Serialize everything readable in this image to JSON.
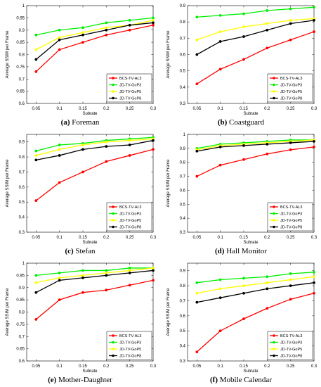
{
  "chart_data": [
    {
      "type": "line",
      "caption_letter": "(a)",
      "caption_title": "Foreman",
      "xlabel": "Subrate",
      "ylabel": "Average SSIM per Frame",
      "xlim": [
        0.03,
        0.3
      ],
      "ylim": [
        0.6,
        1.0
      ],
      "x_ticks": [
        "0.05",
        "0.1",
        "0.15",
        "0.2",
        "0.25",
        "0.3"
      ],
      "y_ticks": [
        "0.6",
        "0.65",
        "0.7",
        "0.75",
        "0.8",
        "0.85",
        "0.9",
        "0.95",
        "1"
      ],
      "legend_position": "bottom-right",
      "x": [
        0.05,
        0.1,
        0.15,
        0.2,
        0.25,
        0.3
      ],
      "series": [
        {
          "name": "BCS-TV-AL3",
          "color": "#ff0000",
          "values": [
            0.73,
            0.82,
            0.85,
            0.88,
            0.9,
            0.92
          ]
        },
        {
          "name": "JD-TV-GoP3",
          "color": "#00ee00",
          "values": [
            0.88,
            0.9,
            0.91,
            0.93,
            0.94,
            0.95
          ]
        },
        {
          "name": "JD-TV-GoP5",
          "color": "#ffff00",
          "values": [
            0.82,
            0.87,
            0.89,
            0.91,
            0.92,
            0.94
          ]
        },
        {
          "name": "JD-TV-GoP8",
          "color": "#000000",
          "values": [
            0.78,
            0.86,
            0.88,
            0.9,
            0.92,
            0.93
          ]
        }
      ]
    },
    {
      "type": "line",
      "caption_letter": "(b)",
      "caption_title": "Coastguard",
      "xlabel": "Subrate",
      "ylabel": "Average SSIM per Frame",
      "xlim": [
        0.03,
        0.3
      ],
      "ylim": [
        0.3,
        0.9
      ],
      "x_ticks": [
        "0.05",
        "0.1",
        "0.15",
        "0.2",
        "0.25",
        "0.3"
      ],
      "y_ticks": [
        "0.3",
        "0.4",
        "0.5",
        "0.6",
        "0.7",
        "0.8",
        "0.9"
      ],
      "legend_position": "bottom-right",
      "x": [
        0.05,
        0.1,
        0.15,
        0.2,
        0.25,
        0.3
      ],
      "series": [
        {
          "name": "BCS-TV-AL3",
          "color": "#ff0000",
          "values": [
            0.42,
            0.51,
            0.57,
            0.64,
            0.69,
            0.74
          ]
        },
        {
          "name": "JD-TV-GoP3",
          "color": "#00ee00",
          "values": [
            0.83,
            0.84,
            0.85,
            0.87,
            0.88,
            0.89
          ]
        },
        {
          "name": "JD-TV-GoP5",
          "color": "#ffff00",
          "values": [
            0.69,
            0.74,
            0.77,
            0.79,
            0.81,
            0.82
          ]
        },
        {
          "name": "JD-TV-GoP8",
          "color": "#000000",
          "values": [
            0.6,
            0.68,
            0.71,
            0.75,
            0.79,
            0.81
          ]
        }
      ]
    },
    {
      "type": "line",
      "caption_letter": "(c)",
      "caption_title": "Stefan",
      "xlabel": "Subrate",
      "ylabel": "Average SSIM per Frame",
      "xlim": [
        0.03,
        0.3
      ],
      "ylim": [
        0.3,
        0.95
      ],
      "x_ticks": [
        "0.05",
        "0.1",
        "0.15",
        "0.2",
        "0.25",
        "0.3"
      ],
      "y_ticks": [
        "0.3",
        "0.4",
        "0.5",
        "0.6",
        "0.7",
        "0.8",
        "0.9"
      ],
      "legend_position": "bottom-right",
      "x": [
        0.05,
        0.1,
        0.15,
        0.2,
        0.25,
        0.3
      ],
      "series": [
        {
          "name": "BCS-TV-AL3",
          "color": "#ff0000",
          "values": [
            0.51,
            0.63,
            0.7,
            0.77,
            0.81,
            0.85
          ]
        },
        {
          "name": "JD-TV-GoP3",
          "color": "#00ee00",
          "values": [
            0.84,
            0.88,
            0.89,
            0.91,
            0.92,
            0.93
          ]
        },
        {
          "name": "JD-TV-GoP5",
          "color": "#ffff00",
          "values": [
            0.81,
            0.85,
            0.88,
            0.9,
            0.91,
            0.92
          ]
        },
        {
          "name": "JD-TV-GoP8",
          "color": "#000000",
          "values": [
            0.78,
            0.81,
            0.85,
            0.87,
            0.88,
            0.91
          ]
        }
      ]
    },
    {
      "type": "line",
      "caption_letter": "(d)",
      "caption_title": "Hall Monitor",
      "xlabel": "Subrate",
      "ylabel": "Average SSIM per Frame",
      "xlim": [
        0.03,
        0.3
      ],
      "ylim": [
        0.3,
        1.0
      ],
      "x_ticks": [
        "0.05",
        "0.1",
        "0.15",
        "0.2",
        "0.25",
        "0.3"
      ],
      "y_ticks": [
        "0.3",
        "0.4",
        "0.5",
        "0.6",
        "0.7",
        "0.8",
        "0.9",
        "1"
      ],
      "legend_position": "bottom-right",
      "x": [
        0.05,
        0.1,
        0.15,
        0.2,
        0.25,
        0.3
      ],
      "series": [
        {
          "name": "BCS-TV-AL3",
          "color": "#ff0000",
          "values": [
            0.7,
            0.78,
            0.82,
            0.86,
            0.89,
            0.91
          ]
        },
        {
          "name": "JD-TV-GoP3",
          "color": "#00ee00",
          "values": [
            0.9,
            0.93,
            0.94,
            0.95,
            0.96,
            0.96
          ]
        },
        {
          "name": "JD-TV-GoP5",
          "color": "#ffff00",
          "values": [
            0.89,
            0.92,
            0.93,
            0.94,
            0.95,
            0.96
          ]
        },
        {
          "name": "JD-TV-GoP8",
          "color": "#000000",
          "values": [
            0.88,
            0.91,
            0.92,
            0.93,
            0.94,
            0.95
          ]
        }
      ]
    },
    {
      "type": "line",
      "caption_letter": "(e)",
      "caption_title": "Mother-Daughter",
      "xlabel": "Subrate",
      "ylabel": "Average SSIM per Frame",
      "xlim": [
        0.03,
        0.3
      ],
      "ylim": [
        0.6,
        1.0
      ],
      "x_ticks": [
        "0.05",
        "0.1",
        "0.15",
        "0.2",
        "0.25",
        "0.3"
      ],
      "y_ticks": [
        "0.6",
        "0.65",
        "0.7",
        "0.75",
        "0.8",
        "0.85",
        "0.9",
        "0.95",
        "1"
      ],
      "legend_position": "bottom-right",
      "x": [
        0.05,
        0.1,
        0.15,
        0.2,
        0.25,
        0.3
      ],
      "series": [
        {
          "name": "BCS-TV-AL3",
          "color": "#ff0000",
          "values": [
            0.77,
            0.85,
            0.88,
            0.89,
            0.91,
            0.93
          ]
        },
        {
          "name": "JD-TV-GoP3",
          "color": "#00ee00",
          "values": [
            0.95,
            0.96,
            0.97,
            0.97,
            0.98,
            0.98
          ]
        },
        {
          "name": "JD-TV-GoP5",
          "color": "#ffff00",
          "values": [
            0.92,
            0.94,
            0.95,
            0.96,
            0.97,
            0.98
          ]
        },
        {
          "name": "JD-TV-GoP8",
          "color": "#000000",
          "values": [
            0.88,
            0.93,
            0.94,
            0.95,
            0.96,
            0.97
          ]
        }
      ]
    },
    {
      "type": "line",
      "caption_letter": "(f)",
      "caption_title": "Mobile Calendar",
      "xlabel": "Subrate",
      "ylabel": "Average SSIM per Frame",
      "xlim": [
        0.03,
        0.3
      ],
      "ylim": [
        0.3,
        0.95
      ],
      "x_ticks": [
        "0.05",
        "0.1",
        "0.15",
        "0.2",
        "0.25",
        "0.3"
      ],
      "y_ticks": [
        "0.3",
        "0.4",
        "0.5",
        "0.6",
        "0.7",
        "0.8",
        "0.9"
      ],
      "legend_position": "bottom-right",
      "x": [
        0.05,
        0.1,
        0.15,
        0.2,
        0.25,
        0.3
      ],
      "series": [
        {
          "name": "BCS-TV-AL3",
          "color": "#ff0000",
          "values": [
            0.36,
            0.5,
            0.58,
            0.65,
            0.71,
            0.75
          ]
        },
        {
          "name": "JD-TV-GoP3",
          "color": "#00ee00",
          "values": [
            0.82,
            0.84,
            0.85,
            0.86,
            0.88,
            0.89
          ]
        },
        {
          "name": "JD-TV-GoP5",
          "color": "#ffff00",
          "values": [
            0.75,
            0.78,
            0.8,
            0.82,
            0.84,
            0.86
          ]
        },
        {
          "name": "JD-TV-GoP8",
          "color": "#000000",
          "values": [
            0.69,
            0.72,
            0.75,
            0.78,
            0.8,
            0.82
          ]
        }
      ]
    }
  ]
}
